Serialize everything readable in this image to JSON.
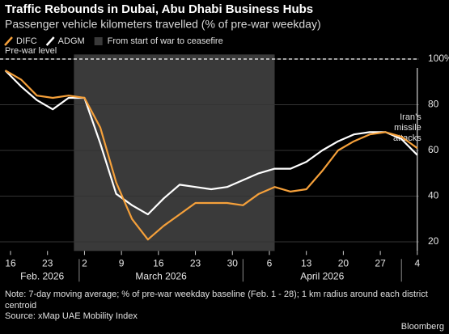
{
  "chart_data": {
    "type": "line",
    "title": "Traffic Rebounds in Dubai, Abu Dhabi Business Hubs",
    "subtitle": "Passenger vehicle kilometers travelled (% of pre-war weekday)",
    "x": [
      "2026-02-15",
      "2026-02-18",
      "2026-02-21",
      "2026-02-24",
      "2026-02-27",
      "2026-03-02",
      "2026-03-05",
      "2026-03-08",
      "2026-03-11",
      "2026-03-14",
      "2026-03-17",
      "2026-03-20",
      "2026-03-23",
      "2026-03-26",
      "2026-03-29",
      "2026-04-01",
      "2026-04-04",
      "2026-04-07",
      "2026-04-10",
      "2026-04-13",
      "2026-04-16",
      "2026-04-19",
      "2026-04-22",
      "2026-04-25",
      "2026-04-28",
      "2026-05-01",
      "2026-05-04"
    ],
    "series": [
      {
        "name": "DIFC",
        "color": "#f5a03a",
        "values": [
          95,
          91,
          84,
          83,
          84,
          83,
          70,
          46,
          30,
          21,
          27,
          32,
          37,
          37,
          37,
          36,
          41,
          44,
          42,
          43,
          51,
          60,
          64,
          67,
          68,
          66,
          61
        ]
      },
      {
        "name": "ADGM",
        "color": "#ffffff",
        "values": [
          95,
          88,
          82,
          78,
          83,
          83,
          63,
          41,
          36,
          32,
          39,
          45,
          44,
          43,
          44,
          47,
          50,
          52,
          52,
          55,
          60,
          64,
          67,
          68,
          68,
          65,
          58
        ]
      }
    ],
    "shade": {
      "label": "From start of war to ceasefire",
      "start": "2026-02-28",
      "end": "2026-04-07",
      "color": "#3a3a3a"
    },
    "reference_line": {
      "value": 100,
      "label": "Pre-war level"
    },
    "annotation": {
      "text": "Iran’s missile attacks",
      "x": "2026-05-04"
    },
    "ylim": [
      16,
      102
    ],
    "yticks": [
      20,
      40,
      60,
      80,
      {
        "value": 100,
        "label": "100%"
      }
    ],
    "xticks": [
      {
        "value": "2026-02-16",
        "label": "16"
      },
      {
        "value": "2026-02-23",
        "label": "23"
      },
      {
        "value": "2026-03-02",
        "label": "2"
      },
      {
        "value": "2026-03-09",
        "label": "9"
      },
      {
        "value": "2026-03-16",
        "label": "16"
      },
      {
        "value": "2026-03-23",
        "label": "23"
      },
      {
        "value": "2026-03-30",
        "label": "30"
      },
      {
        "value": "2026-04-06",
        "label": "6"
      },
      {
        "value": "2026-04-13",
        "label": "13"
      },
      {
        "value": "2026-04-20",
        "label": "20"
      },
      {
        "value": "2026-04-27",
        "label": "27"
      },
      {
        "value": "2026-05-04",
        "label": "4"
      }
    ],
    "x_group_labels": [
      "Feb. 2026",
      "March 2026",
      "April 2026"
    ],
    "grid": true,
    "note": "Note: 7-day moving average; % of pre-war weekday baseline (Feb. 1 - 28); 1 km radius around each district centroid",
    "source": "Source: xMap UAE Mobility Index",
    "credit": "Bloomberg"
  }
}
